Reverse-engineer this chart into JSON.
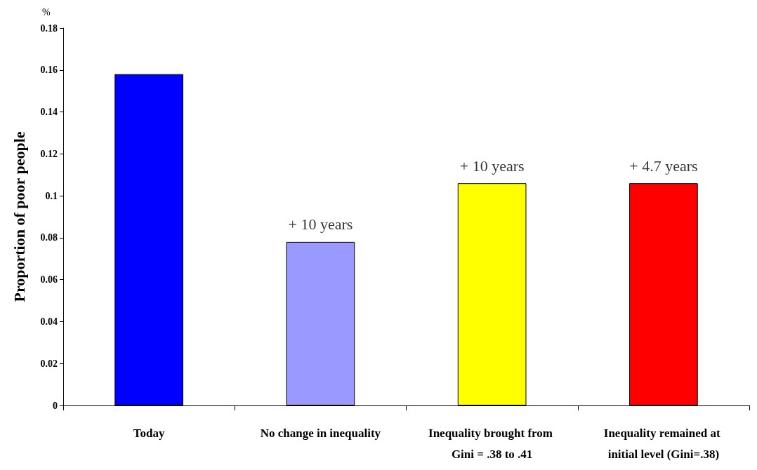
{
  "chart_data": {
    "type": "bar",
    "ylabel": "Proportion of poor people",
    "categories": [
      "Today",
      "No change in inequality",
      "Inequality brought from Gini = .38 to .41",
      "Inequality remained at initial level (Gini=.38)"
    ],
    "values": [
      0.158,
      0.078,
      0.106,
      0.106
    ],
    "colors": [
      "#0000ff",
      "#9999ff",
      "#ffff00",
      "#ff0000"
    ],
    "ylim": [
      0,
      0.18
    ],
    "yticks": [
      0,
      0.02,
      0.04,
      0.06,
      0.08,
      0.1,
      0.12,
      0.14,
      0.16,
      0.18
    ],
    "grid": false,
    "annotations": [
      "%",
      {
        "text": "+ 10 years",
        "x": "No change in inequality",
        "y": 0.078
      },
      {
        "text": "+ 10 years",
        "x": "Inequality brought from Gini = .38 to .41",
        "y": 0.106
      },
      {
        "text": "+ 4.7 years",
        "x": "Inequality remained at initial level (Gini=.38)",
        "y": 0.106
      }
    ]
  }
}
